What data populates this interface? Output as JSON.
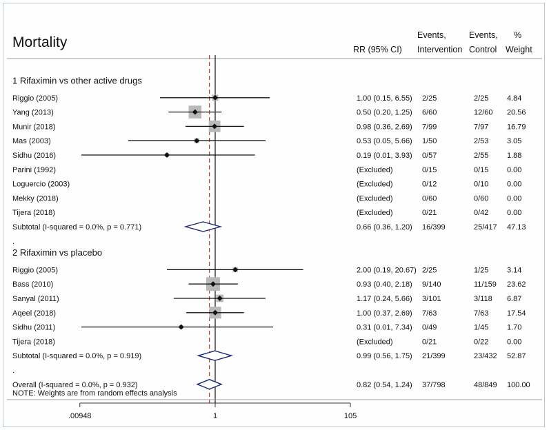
{
  "title": "Mortality",
  "headers": {
    "rr": "RR (95% CI)",
    "events_int_1": "Events,",
    "events_int_2": "Intervention",
    "events_ctl_1": "Events,",
    "events_ctl_2": "Control",
    "weight_1": "%",
    "weight_2": "Weight"
  },
  "note": "NOTE: Weights are from random effects analysis",
  "chart_data": {
    "type": "forest",
    "scale": "log",
    "xticks": [
      {
        "value": 0.00948,
        "label": ".00948"
      },
      {
        "value": 1,
        "label": "1"
      },
      {
        "value": 105,
        "label": "105"
      }
    ],
    "null_line": 1,
    "overall_line": 0.82,
    "rows": [
      {
        "kind": "group",
        "label": "1 Rifaximin vs other active drugs"
      },
      {
        "kind": "study",
        "label": "Riggio (2005)",
        "rr": 1.0,
        "lo": 0.15,
        "hi": 6.55,
        "text": "1.00 (0.15, 6.55)",
        "ev_int": "2/25",
        "ev_ctl": "2/25",
        "weight": "4.84",
        "w": 4.84
      },
      {
        "kind": "study",
        "label": "Yang (2013)",
        "rr": 0.5,
        "lo": 0.2,
        "hi": 1.25,
        "text": "0.50 (0.20, 1.25)",
        "ev_int": "6/60",
        "ev_ctl": "12/60",
        "weight": "20.56",
        "w": 20.56
      },
      {
        "kind": "study",
        "label": "Munir (2018)",
        "rr": 0.98,
        "lo": 0.36,
        "hi": 2.69,
        "text": "0.98 (0.36, 2.69)",
        "ev_int": "7/99",
        "ev_ctl": "7/97",
        "weight": "16.79",
        "w": 16.79
      },
      {
        "kind": "study",
        "label": "Mas (2003)",
        "rr": 0.53,
        "lo": 0.05,
        "hi": 5.66,
        "text": "0.53 (0.05, 5.66)",
        "ev_int": "1/50",
        "ev_ctl": "2/53",
        "weight": "3.05",
        "w": 3.05
      },
      {
        "kind": "study",
        "label": "Sidhu (2016)",
        "rr": 0.19,
        "lo": 0.01,
        "hi": 3.93,
        "text": "0.19 (0.01, 3.93)",
        "ev_int": "0/57",
        "ev_ctl": "2/55",
        "weight": "1.88",
        "w": 1.88
      },
      {
        "kind": "excluded",
        "label": "Parini (1992)",
        "text": "(Excluded)",
        "ev_int": "0/15",
        "ev_ctl": "0/15",
        "weight": "0.00"
      },
      {
        "kind": "excluded",
        "label": "Loguercio  (2003)",
        "text": "(Excluded)",
        "ev_int": "0/12",
        "ev_ctl": "0/10",
        "weight": "0.00"
      },
      {
        "kind": "excluded",
        "label": "Mekky (2018)",
        "text": "(Excluded)",
        "ev_int": "0/60",
        "ev_ctl": "0/60",
        "weight": "0.00"
      },
      {
        "kind": "excluded",
        "label": "Tijera (2018)",
        "text": "(Excluded)",
        "ev_int": "0/21",
        "ev_ctl": "0/42",
        "weight": "0.00"
      },
      {
        "kind": "subtotal",
        "label": "Subtotal  (I-squared = 0.0%, p = 0.771)",
        "rr": 0.66,
        "lo": 0.36,
        "hi": 1.2,
        "text": "0.66 (0.36, 1.20)",
        "ev_int": "16/399",
        "ev_ctl": "25/417",
        "weight": "47.13"
      },
      {
        "kind": "dot",
        "label": "."
      },
      {
        "kind": "group",
        "label": "2 Rifaximin vs placebo"
      },
      {
        "kind": "study",
        "label": "Riggio (2005)",
        "rr": 2.0,
        "lo": 0.19,
        "hi": 20.67,
        "text": "2.00 (0.19, 20.67)",
        "ev_int": "2/25",
        "ev_ctl": "1/25",
        "weight": "3.14",
        "w": 3.14
      },
      {
        "kind": "study",
        "label": "Bass (2010)",
        "rr": 0.93,
        "lo": 0.4,
        "hi": 2.18,
        "text": "0.93 (0.40, 2.18)",
        "ev_int": "9/140",
        "ev_ctl": "11/159",
        "weight": "23.62",
        "w": 23.62
      },
      {
        "kind": "study",
        "label": "Sanyal (2011)",
        "rr": 1.17,
        "lo": 0.24,
        "hi": 5.66,
        "text": "1.17 (0.24, 5.66)",
        "ev_int": "3/101",
        "ev_ctl": "3/118",
        "weight": "6.87",
        "w": 6.87
      },
      {
        "kind": "study",
        "label": "Aqeel (2018)",
        "rr": 1.0,
        "lo": 0.37,
        "hi": 2.69,
        "text": "1.00 (0.37, 2.69)",
        "ev_int": "7/63",
        "ev_ctl": "7/63",
        "weight": "17.54",
        "w": 17.54
      },
      {
        "kind": "study",
        "label": "Sidhu (2011)",
        "rr": 0.31,
        "lo": 0.01,
        "hi": 7.34,
        "text": "0.31 (0.01, 7.34)",
        "ev_int": "0/49",
        "ev_ctl": "1/45",
        "weight": "1.70",
        "w": 1.7
      },
      {
        "kind": "excluded",
        "label": "Tijera (2018)",
        "text": "(Excluded)",
        "ev_int": "0/21",
        "ev_ctl": "0/22",
        "weight": "0.00"
      },
      {
        "kind": "subtotal",
        "label": "Subtotal  (I-squared = 0.0%, p = 0.919)",
        "rr": 0.99,
        "lo": 0.56,
        "hi": 1.75,
        "text": "0.99 (0.56, 1.75)",
        "ev_int": "21/399",
        "ev_ctl": "23/432",
        "weight": "52.87"
      },
      {
        "kind": "dot",
        "label": "."
      },
      {
        "kind": "overall",
        "label": "Overall  (I-squared = 0.0%, p = 0.932)",
        "rr": 0.82,
        "lo": 0.54,
        "hi": 1.24,
        "text": "0.82 (0.54, 1.24)",
        "ev_int": "37/798",
        "ev_ctl": "48/849",
        "weight": "100.00"
      }
    ]
  },
  "colors": {
    "line": "#111111",
    "diamond": "#1a2a6e",
    "box": "#b9b9b9",
    "dash": "#c0392b",
    "axis": "#333333"
  }
}
